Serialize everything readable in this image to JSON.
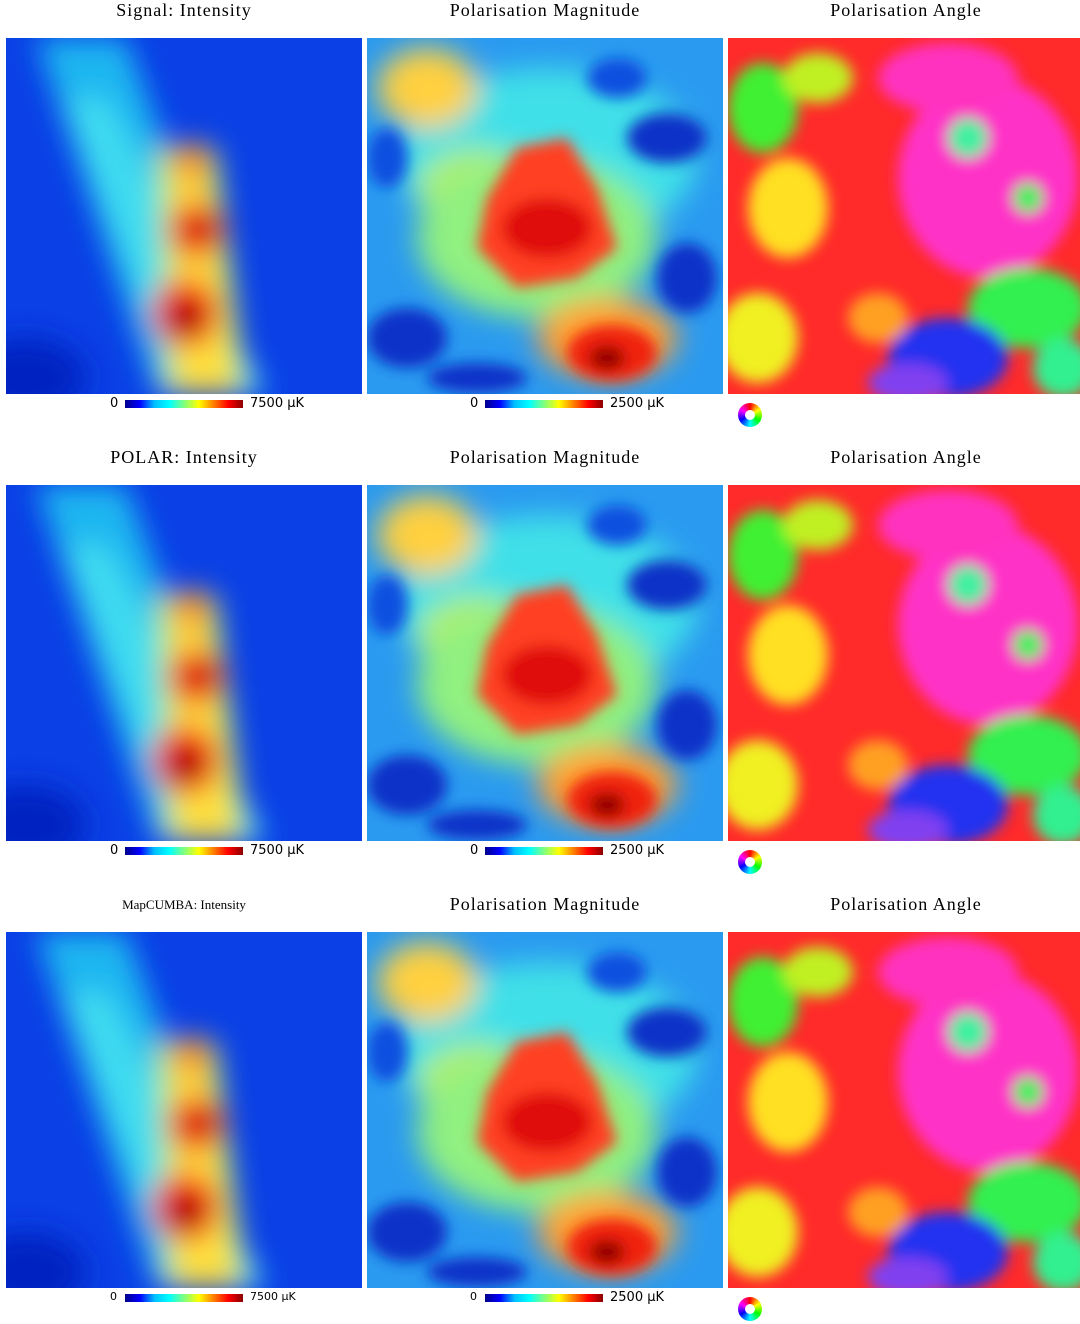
{
  "rows": [
    {
      "titles": [
        "Signal: Intensity",
        "Polarisation Magnitude",
        "Polarisation Angle"
      ],
      "colorbars": [
        {
          "min": "0",
          "max": "7500 µK"
        },
        {
          "min": "0",
          "max": "2500 µK"
        }
      ]
    },
    {
      "titles": [
        "POLAR: Intensity",
        "Polarisation Magnitude",
        "Polarisation Angle"
      ],
      "colorbars": [
        {
          "min": "0",
          "max": "7500 µK"
        },
        {
          "min": "0",
          "max": "2500 µK"
        }
      ]
    },
    {
      "titles": [
        "MapCUMBA: Intensity",
        "Polarisation Magnitude",
        "Polarisation Angle"
      ],
      "colorbars": [
        {
          "min": "0",
          "max": "7500 µK"
        },
        {
          "min": "0",
          "max": "2500 µK"
        }
      ]
    }
  ]
}
